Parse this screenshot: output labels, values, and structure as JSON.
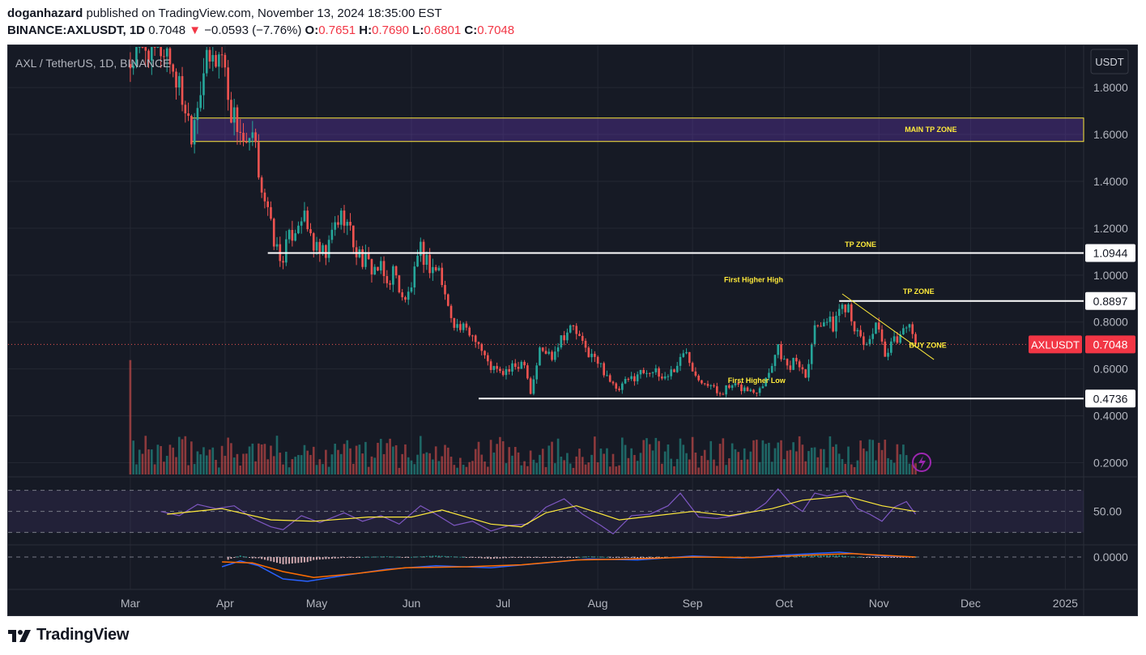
{
  "header": {
    "author": "doganhazard",
    "published_text": "published on TradingView.com, November 13, 2024 18:35:00 EST",
    "symbol_line": "BINANCE:AXLUSDT, 1D",
    "last_price": "0.7048",
    "change_arrow": "▼",
    "change": "−0.0593 (−7.76%)",
    "o_label": "O:",
    "o_value": "0.7651",
    "h_label": "H:",
    "h_value": "0.7690",
    "l_label": "L:",
    "l_value": "0.6801",
    "c_label": "C:",
    "c_value": "0.7048"
  },
  "chart_title": "AXL / TetherUS, 1D, BINANCE",
  "currency_button": "USDT",
  "footer": {
    "brand": "TradingView",
    "logo_text": "17"
  },
  "colors": {
    "background": "#161a25",
    "up": "#26a69a",
    "down": "#ef5350",
    "annotation": "#ffeb3b",
    "rsi_line": "#7e57c2",
    "rsi_ma": "#ffeb3b",
    "macd_line": "#2962ff",
    "signal_line": "#ff6d00"
  },
  "chart_data": {
    "type": "candlestick",
    "title": "AXL / TetherUS, 1D, BINANCE",
    "y_axis": {
      "ticks": [
        "1.8000",
        "1.6000",
        "1.4000",
        "1.2000",
        "1.0000",
        "0.8000",
        "0.6000",
        "0.4000",
        "0.2000"
      ],
      "tick_values": [
        1.8,
        1.6,
        1.4,
        1.2,
        1.0,
        0.8,
        0.6,
        0.4,
        0.2
      ],
      "range": [
        0.15,
        1.98
      ]
    },
    "x_axis": {
      "labels": [
        "Mar",
        "Apr",
        "May",
        "Jun",
        "Jul",
        "Aug",
        "Sep",
        "Oct",
        "Nov",
        "Dec",
        "2025"
      ],
      "label_days": [
        0,
        31,
        61,
        92,
        122,
        153,
        184,
        214,
        245,
        275,
        306
      ],
      "range_days": [
        -40,
        312
      ]
    },
    "price_path": [
      {
        "d": 0,
        "p": 1.9
      },
      {
        "d": 5,
        "p": 1.98
      },
      {
        "d": 12,
        "p": 1.96
      },
      {
        "d": 18,
        "p": 1.72
      },
      {
        "d": 20,
        "p": 1.62
      },
      {
        "d": 24,
        "p": 1.88
      },
      {
        "d": 30,
        "p": 1.95
      },
      {
        "d": 33,
        "p": 1.7
      },
      {
        "d": 36,
        "p": 1.62
      },
      {
        "d": 38,
        "p": 1.52
      },
      {
        "d": 40,
        "p": 1.58
      },
      {
        "d": 42,
        "p": 1.45
      },
      {
        "d": 46,
        "p": 1.2
      },
      {
        "d": 49,
        "p": 1.06
      },
      {
        "d": 53,
        "p": 1.18
      },
      {
        "d": 56,
        "p": 1.26
      },
      {
        "d": 61,
        "p": 1.1
      },
      {
        "d": 64,
        "p": 1.08
      },
      {
        "d": 67,
        "p": 1.22
      },
      {
        "d": 70,
        "p": 1.26
      },
      {
        "d": 74,
        "p": 1.1
      },
      {
        "d": 78,
        "p": 1.04
      },
      {
        "d": 82,
        "p": 1.02
      },
      {
        "d": 84,
        "p": 0.96
      },
      {
        "d": 86,
        "p": 1.02
      },
      {
        "d": 90,
        "p": 0.88
      },
      {
        "d": 93,
        "p": 1.0
      },
      {
        "d": 95,
        "p": 1.1
      },
      {
        "d": 98,
        "p": 1.04
      },
      {
        "d": 101,
        "p": 1.02
      },
      {
        "d": 104,
        "p": 0.86
      },
      {
        "d": 107,
        "p": 0.78
      },
      {
        "d": 110,
        "p": 0.76
      },
      {
        "d": 113,
        "p": 0.74
      },
      {
        "d": 117,
        "p": 0.62
      },
      {
        "d": 121,
        "p": 0.58
      },
      {
        "d": 125,
        "p": 0.6
      },
      {
        "d": 129,
        "p": 0.64
      },
      {
        "d": 131,
        "p": 0.5
      },
      {
        "d": 134,
        "p": 0.68
      },
      {
        "d": 138,
        "p": 0.66
      },
      {
        "d": 141,
        "p": 0.74
      },
      {
        "d": 145,
        "p": 0.78
      },
      {
        "d": 148,
        "p": 0.7
      },
      {
        "d": 152,
        "p": 0.64
      },
      {
        "d": 156,
        "p": 0.58
      },
      {
        "d": 159,
        "p": 0.5
      },
      {
        "d": 162,
        "p": 0.54
      },
      {
        "d": 166,
        "p": 0.58
      },
      {
        "d": 170,
        "p": 0.6
      },
      {
        "d": 174,
        "p": 0.56
      },
      {
        "d": 178,
        "p": 0.6
      },
      {
        "d": 182,
        "p": 0.68
      },
      {
        "d": 185,
        "p": 0.58
      },
      {
        "d": 189,
        "p": 0.54
      },
      {
        "d": 192,
        "p": 0.5
      },
      {
        "d": 196,
        "p": 0.52
      },
      {
        "d": 200,
        "p": 0.52
      },
      {
        "d": 204,
        "p": 0.5
      },
      {
        "d": 208,
        "p": 0.56
      },
      {
        "d": 212,
        "p": 0.7
      },
      {
        "d": 215,
        "p": 0.6
      },
      {
        "d": 218,
        "p": 0.64
      },
      {
        "d": 221,
        "p": 0.58
      },
      {
        "d": 224,
        "p": 0.78
      },
      {
        "d": 227,
        "p": 0.82
      },
      {
        "d": 230,
        "p": 0.78
      },
      {
        "d": 232,
        "p": 0.86
      },
      {
        "d": 235,
        "p": 0.88
      },
      {
        "d": 238,
        "p": 0.74
      },
      {
        "d": 241,
        "p": 0.7
      },
      {
        "d": 244,
        "p": 0.8
      },
      {
        "d": 247,
        "p": 0.64
      },
      {
        "d": 250,
        "p": 0.72
      },
      {
        "d": 253,
        "p": 0.76
      },
      {
        "d": 255,
        "p": 0.82
      },
      {
        "d": 257,
        "p": 0.7048
      }
    ],
    "horizontal_levels": [
      {
        "price": 1.0944,
        "label": "1.0944",
        "from_day": 45
      },
      {
        "price": 0.8897,
        "label": "0.8897",
        "from_day": 232
      },
      {
        "price": 0.4736,
        "label": "0.4736",
        "from_day": 114
      }
    ],
    "zones": [
      {
        "name": "MAIN TP ZONE",
        "from_day": 20,
        "top": 1.67,
        "bottom": 1.57
      }
    ],
    "trendline": {
      "from": {
        "d": 233,
        "p": 0.92
      },
      "to": {
        "d": 263,
        "p": 0.64
      }
    },
    "current_price": {
      "symbol": "AXLUSDT",
      "value": "0.7048",
      "price": 0.7048
    },
    "annotations": [
      {
        "text": "MAIN TP ZONE",
        "d": 262,
        "p": 1.61
      },
      {
        "text": "TP ZONE",
        "d": 239,
        "p": 1.12
      },
      {
        "text": "TP ZONE",
        "d": 258,
        "p": 0.92
      },
      {
        "text": "First Higher High",
        "d": 204,
        "p": 0.97
      },
      {
        "text": "BUY ZONE",
        "d": 261,
        "p": 0.69
      },
      {
        "text": "First Higher Low",
        "d": 205,
        "p": 0.54
      }
    ],
    "rsi": {
      "axis_label": "50.00",
      "axis_value": 50,
      "upper_band": 80,
      "lower_band": 20,
      "path": [
        {
          "d": 10,
          "v": 50
        },
        {
          "d": 16,
          "v": 44
        },
        {
          "d": 22,
          "v": 60
        },
        {
          "d": 28,
          "v": 54
        },
        {
          "d": 34,
          "v": 58
        },
        {
          "d": 40,
          "v": 40
        },
        {
          "d": 46,
          "v": 28
        },
        {
          "d": 50,
          "v": 24
        },
        {
          "d": 56,
          "v": 44
        },
        {
          "d": 62,
          "v": 34
        },
        {
          "d": 70,
          "v": 48
        },
        {
          "d": 76,
          "v": 36
        },
        {
          "d": 82,
          "v": 44
        },
        {
          "d": 88,
          "v": 32
        },
        {
          "d": 95,
          "v": 58
        },
        {
          "d": 100,
          "v": 46
        },
        {
          "d": 106,
          "v": 30
        },
        {
          "d": 112,
          "v": 36
        },
        {
          "d": 118,
          "v": 22
        },
        {
          "d": 124,
          "v": 30
        },
        {
          "d": 130,
          "v": 32
        },
        {
          "d": 136,
          "v": 56
        },
        {
          "d": 142,
          "v": 68
        },
        {
          "d": 148,
          "v": 46
        },
        {
          "d": 154,
          "v": 30
        },
        {
          "d": 158,
          "v": 18
        },
        {
          "d": 164,
          "v": 44
        },
        {
          "d": 170,
          "v": 46
        },
        {
          "d": 176,
          "v": 58
        },
        {
          "d": 180,
          "v": 76
        },
        {
          "d": 186,
          "v": 42
        },
        {
          "d": 192,
          "v": 40
        },
        {
          "d": 198,
          "v": 44
        },
        {
          "d": 204,
          "v": 50
        },
        {
          "d": 208,
          "v": 62
        },
        {
          "d": 212,
          "v": 82
        },
        {
          "d": 216,
          "v": 62
        },
        {
          "d": 220,
          "v": 50
        },
        {
          "d": 224,
          "v": 76
        },
        {
          "d": 228,
          "v": 72
        },
        {
          "d": 234,
          "v": 78
        },
        {
          "d": 238,
          "v": 54
        },
        {
          "d": 242,
          "v": 46
        },
        {
          "d": 246,
          "v": 36
        },
        {
          "d": 250,
          "v": 56
        },
        {
          "d": 254,
          "v": 64
        },
        {
          "d": 257,
          "v": 46
        }
      ],
      "ma_path": [
        {
          "d": 12,
          "v": 46
        },
        {
          "d": 30,
          "v": 54
        },
        {
          "d": 46,
          "v": 38
        },
        {
          "d": 60,
          "v": 36
        },
        {
          "d": 78,
          "v": 42
        },
        {
          "d": 92,
          "v": 42
        },
        {
          "d": 102,
          "v": 52
        },
        {
          "d": 118,
          "v": 32
        },
        {
          "d": 128,
          "v": 28
        },
        {
          "d": 136,
          "v": 48
        },
        {
          "d": 146,
          "v": 58
        },
        {
          "d": 160,
          "v": 38
        },
        {
          "d": 172,
          "v": 44
        },
        {
          "d": 184,
          "v": 50
        },
        {
          "d": 196,
          "v": 44
        },
        {
          "d": 210,
          "v": 54
        },
        {
          "d": 220,
          "v": 66
        },
        {
          "d": 234,
          "v": 72
        },
        {
          "d": 246,
          "v": 58
        },
        {
          "d": 257,
          "v": 50
        }
      ]
    },
    "macd": {
      "axis_label": "0.0000",
      "axis_value": 0,
      "range": [
        -0.06,
        0.02
      ],
      "macd_path": [
        {
          "d": 30,
          "v": -0.02
        },
        {
          "d": 36,
          "v": -0.008
        },
        {
          "d": 42,
          "v": -0.018
        },
        {
          "d": 50,
          "v": -0.045
        },
        {
          "d": 58,
          "v": -0.05
        },
        {
          "d": 70,
          "v": -0.038
        },
        {
          "d": 84,
          "v": -0.025
        },
        {
          "d": 100,
          "v": -0.018
        },
        {
          "d": 118,
          "v": -0.022
        },
        {
          "d": 136,
          "v": -0.012
        },
        {
          "d": 150,
          "v": -0.004
        },
        {
          "d": 166,
          "v": -0.006
        },
        {
          "d": 184,
          "v": 0.002
        },
        {
          "d": 200,
          "v": -0.002
        },
        {
          "d": 214,
          "v": 0.004
        },
        {
          "d": 232,
          "v": 0.01
        },
        {
          "d": 246,
          "v": 0.002
        },
        {
          "d": 257,
          "v": 0.0
        }
      ],
      "signal_path": [
        {
          "d": 30,
          "v": -0.01
        },
        {
          "d": 40,
          "v": -0.012
        },
        {
          "d": 50,
          "v": -0.03
        },
        {
          "d": 60,
          "v": -0.042
        },
        {
          "d": 74,
          "v": -0.034
        },
        {
          "d": 90,
          "v": -0.022
        },
        {
          "d": 110,
          "v": -0.02
        },
        {
          "d": 128,
          "v": -0.016
        },
        {
          "d": 146,
          "v": -0.006
        },
        {
          "d": 164,
          "v": -0.004
        },
        {
          "d": 184,
          "v": 0.0
        },
        {
          "d": 204,
          "v": -0.001
        },
        {
          "d": 222,
          "v": 0.004
        },
        {
          "d": 236,
          "v": 0.007
        },
        {
          "d": 257,
          "v": 0.0
        }
      ]
    }
  }
}
